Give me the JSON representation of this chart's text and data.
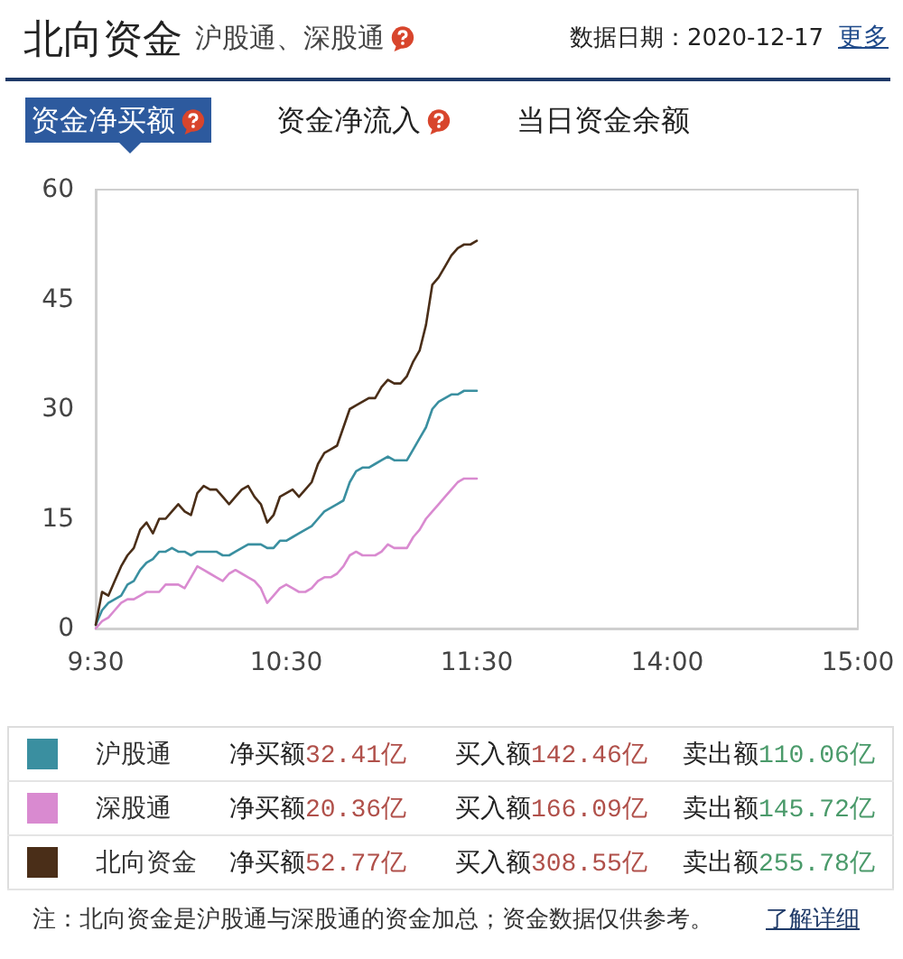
{
  "chart_data": {
    "type": "line",
    "title": "北向资金",
    "subtitle": "沪股通、深股通",
    "annotations": [
      "数据日期：2020-12-17",
      "更多",
      "资金净买额",
      "资金净流入",
      "当日资金余额",
      "净买额32.41亿",
      "买入额142.46亿",
      "卖出额110.06亿",
      "净买额20.36亿",
      "买入额166.09亿",
      "卖出额145.72亿",
      "净买额52.77亿",
      "买入额308.55亿",
      "卖出额255.78亿",
      "注：北向资金是沪股通与深股通的资金加总；资金数据仅供参考。",
      "了解详细"
    ],
    "categories": [
      "9:30",
      null,
      null,
      null,
      null,
      null,
      null,
      null,
      null,
      null,
      null,
      null,
      null,
      null,
      null,
      null,
      null,
      null,
      null,
      null,
      null,
      null,
      null,
      null,
      null,
      null,
      null,
      null,
      null,
      null,
      "10:30",
      null,
      null,
      null,
      null,
      null,
      null,
      null,
      null,
      null,
      null,
      null,
      null,
      null,
      null,
      null,
      null,
      null,
      null,
      null,
      null,
      null,
      null,
      null,
      null,
      null,
      null,
      null,
      null,
      null,
      "11:30",
      null,
      null,
      null,
      null,
      null,
      null,
      null,
      null,
      null,
      null,
      null,
      null,
      null,
      null,
      null,
      null,
      null,
      null,
      null,
      null,
      null,
      null,
      null,
      null,
      null,
      null,
      null,
      null,
      null,
      "14:00",
      null,
      null,
      null,
      null,
      null,
      null,
      null,
      null,
      null,
      null,
      null,
      null,
      null,
      null,
      null,
      null,
      null,
      null,
      null,
      null,
      null,
      null,
      null,
      null,
      null,
      null,
      null,
      null,
      null,
      "15:00"
    ],
    "ylim": [
      0,
      60
    ],
    "yticks": [
      0,
      15,
      30,
      45,
      60
    ],
    "grid": false,
    "legend": "bottom",
    "marker": "none",
    "line_style": "solid",
    "series": [
      {
        "name": "沪股通",
        "color": "#3a8fa0",
        "values": [
          0.5,
          2.5,
          3.5,
          4,
          4.5,
          6,
          6.5,
          8,
          9,
          9.5,
          10.5,
          10.5,
          11,
          10.5,
          10.5,
          10,
          10.5,
          10.5,
          10.5,
          10.5,
          10,
          10,
          10.5,
          11,
          11.5,
          11.5,
          11.5,
          11,
          11,
          12,
          12,
          12.5,
          13,
          13.5,
          14,
          15,
          16,
          16.5,
          17,
          17.5,
          20,
          21.5,
          22,
          22,
          22.5,
          23,
          23.5,
          23,
          23,
          23,
          24.5,
          26,
          27.5,
          30,
          31,
          31.5,
          32,
          32,
          32.5,
          32.5,
          32.5,
          null,
          null,
          null,
          null,
          null,
          null,
          null,
          null,
          null,
          null,
          null,
          null,
          null,
          null,
          null,
          null,
          null,
          null,
          null,
          null,
          null,
          null,
          null,
          null,
          null,
          null,
          null,
          null,
          null,
          null,
          null,
          null,
          null,
          null,
          null,
          null,
          null,
          null,
          null,
          null,
          null,
          null,
          null,
          null,
          null,
          null,
          null,
          null,
          null,
          null,
          null,
          null,
          null,
          null,
          null,
          null,
          null,
          null,
          null,
          null
        ]
      },
      {
        "name": "深股通",
        "color": "#d98ad0",
        "values": [
          0,
          1,
          1.5,
          2.5,
          3.5,
          4,
          4,
          4.5,
          5,
          5,
          5,
          6,
          6,
          6,
          5.5,
          7,
          8.5,
          8,
          7.5,
          7,
          6.5,
          7.5,
          8,
          7.5,
          7,
          6.5,
          5.5,
          3.5,
          4.5,
          5.5,
          6,
          5.5,
          5,
          5,
          5.5,
          6.5,
          7,
          7,
          7.5,
          8.5,
          10,
          10.5,
          10,
          10,
          10,
          10.5,
          11.5,
          11,
          11,
          11,
          12.5,
          13.5,
          15,
          16,
          17,
          18,
          19,
          20,
          20.5,
          20.5,
          20.5,
          null,
          null,
          null,
          null,
          null,
          null,
          null,
          null,
          null,
          null,
          null,
          null,
          null,
          null,
          null,
          null,
          null,
          null,
          null,
          null,
          null,
          null,
          null,
          null,
          null,
          null,
          null,
          null,
          null,
          null,
          null,
          null,
          null,
          null,
          null,
          null,
          null,
          null,
          null,
          null,
          null,
          null,
          null,
          null,
          null,
          null,
          null,
          null,
          null,
          null,
          null,
          null,
          null,
          null,
          null,
          null,
          null,
          null,
          null,
          null
        ]
      },
      {
        "name": "北向资金",
        "color": "#4a2e18",
        "values": [
          0.5,
          5,
          4.5,
          6.5,
          8.5,
          10,
          11,
          13.5,
          14.5,
          13,
          15,
          15,
          16,
          17,
          16,
          15.5,
          18.5,
          19.5,
          19,
          19,
          18,
          17,
          18,
          19,
          19.5,
          18,
          17,
          14.5,
          15.5,
          18,
          18.5,
          19,
          18,
          19,
          20,
          22.5,
          24,
          24.5,
          25,
          27.5,
          30,
          30.5,
          31,
          31.5,
          31.5,
          33,
          34,
          33.5,
          33.5,
          34.5,
          36.5,
          38,
          41.5,
          47,
          48,
          49.5,
          51,
          52,
          52.5,
          52.5,
          53,
          null,
          null,
          null,
          null,
          null,
          null,
          null,
          null,
          null,
          null,
          null,
          null,
          null,
          null,
          null,
          null,
          null,
          null,
          null,
          null,
          null,
          null,
          null,
          null,
          null,
          null,
          null,
          null,
          null,
          null,
          null,
          null,
          null,
          null,
          null,
          null,
          null,
          null,
          null,
          null,
          null,
          null,
          null,
          null,
          null,
          null,
          null,
          null,
          null,
          null,
          null,
          null,
          null,
          null,
          null,
          null,
          null,
          null,
          null,
          null
        ]
      }
    ]
  }
}
